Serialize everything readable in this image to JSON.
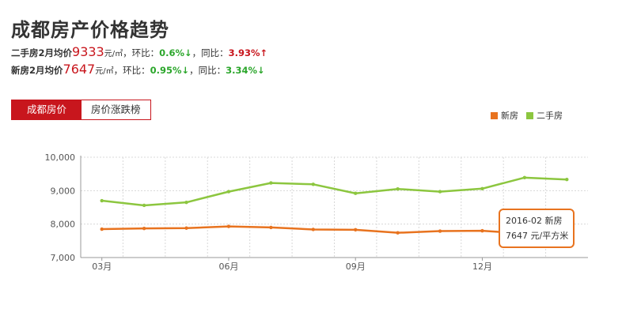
{
  "page": {
    "title": "成都房产价格趋势"
  },
  "stats": {
    "second_hand": {
      "label": "二手房2月均价",
      "price": "9333",
      "unit": "元/㎡",
      "hb_label": "，环比：",
      "hb_value": "0.6%↓",
      "tb_label": "，同比：",
      "tb_value": "3.93%↑"
    },
    "new_house": {
      "label": "新房2月均价",
      "price": "7647",
      "unit": "元/㎡",
      "hb_label": "，环比：",
      "hb_value": "0.95%↓",
      "tb_label": "，同比：",
      "tb_value": "3.34%↓"
    }
  },
  "tabs": [
    {
      "label": "成都房价",
      "active": true
    },
    {
      "label": "房价涨跌榜",
      "active": false
    }
  ],
  "colors": {
    "accent_red": "#c8161d",
    "new_house": "#e8731f",
    "second_hand": "#8cc63f",
    "up": "#c8161d",
    "down": "#2ba62b"
  },
  "tooltip": {
    "line1": "2016-02 新房",
    "line2": "7647 元/平方米"
  },
  "chart_data": {
    "type": "line",
    "title": "",
    "xlabel": "",
    "ylabel": "",
    "categories": [
      "2015-03",
      "2015-04",
      "2015-05",
      "2015-06",
      "2015-07",
      "2015-08",
      "2015-09",
      "2015-10",
      "2015-11",
      "2015-12",
      "2016-01",
      "2016-02"
    ],
    "x_tick_labels": [
      "03月",
      "06月",
      "09月",
      "12月"
    ],
    "x_tick_indices": [
      0,
      3,
      6,
      9
    ],
    "ylim": [
      7000,
      10000
    ],
    "y_ticks": [
      7000,
      8000,
      9000,
      10000
    ],
    "y_tick_labels": [
      "7,000",
      "8,000",
      "9,000",
      "10,000"
    ],
    "grid": true,
    "legend_position": "top-right",
    "series": [
      {
        "name": "新房",
        "color": "#e8731f",
        "values": [
          7850,
          7870,
          7880,
          7930,
          7900,
          7840,
          7830,
          7740,
          7790,
          7800,
          7720,
          7647
        ]
      },
      {
        "name": "二手房",
        "color": "#8cc63f",
        "values": [
          8700,
          8560,
          8650,
          8970,
          9230,
          9190,
          8920,
          9050,
          8970,
          9060,
          9390,
          9333
        ]
      }
    ]
  }
}
